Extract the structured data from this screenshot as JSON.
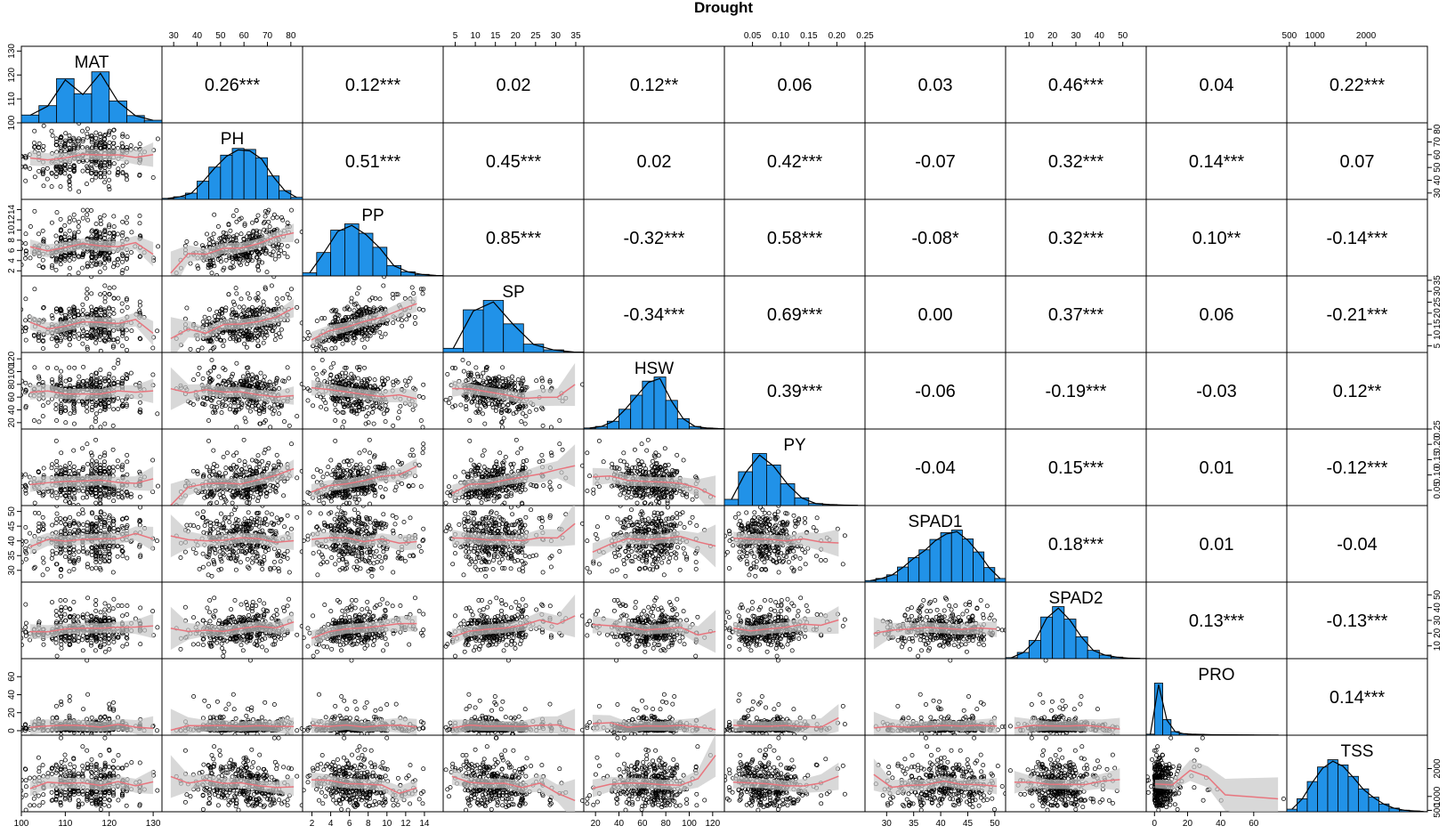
{
  "title": "Drought",
  "chart_data": {
    "type": "scatter",
    "title": "Drought",
    "variables": [
      "MAT",
      "PH",
      "PP",
      "SP",
      "HSW",
      "PY",
      "SPAD1",
      "SPAD2",
      "PRO",
      "TSS"
    ],
    "correlations": [
      [
        "MAT",
        "PH",
        "0.26***"
      ],
      [
        "MAT",
        "PP",
        "0.12***"
      ],
      [
        "MAT",
        "SP",
        "0.02"
      ],
      [
        "MAT",
        "HSW",
        "0.12**"
      ],
      [
        "MAT",
        "PY",
        "0.06"
      ],
      [
        "MAT",
        "SPAD1",
        "0.03"
      ],
      [
        "MAT",
        "SPAD2",
        "0.46***"
      ],
      [
        "MAT",
        "PRO",
        "0.04"
      ],
      [
        "MAT",
        "TSS",
        "0.22***"
      ],
      [
        "PH",
        "PP",
        "0.51***"
      ],
      [
        "PH",
        "SP",
        "0.45***"
      ],
      [
        "PH",
        "HSW",
        "0.02"
      ],
      [
        "PH",
        "PY",
        "0.42***"
      ],
      [
        "PH",
        "SPAD1",
        "-0.07"
      ],
      [
        "PH",
        "SPAD2",
        "0.32***"
      ],
      [
        "PH",
        "PRO",
        "0.14***"
      ],
      [
        "PH",
        "TSS",
        "0.07"
      ],
      [
        "PP",
        "SP",
        "0.85***"
      ],
      [
        "PP",
        "HSW",
        "-0.32***"
      ],
      [
        "PP",
        "PY",
        "0.58***"
      ],
      [
        "PP",
        "SPAD1",
        "-0.08*"
      ],
      [
        "PP",
        "SPAD2",
        "0.32***"
      ],
      [
        "PP",
        "PRO",
        "0.10**"
      ],
      [
        "PP",
        "TSS",
        "-0.14***"
      ],
      [
        "SP",
        "HSW",
        "-0.34***"
      ],
      [
        "SP",
        "PY",
        "0.69***"
      ],
      [
        "SP",
        "SPAD1",
        "0.00"
      ],
      [
        "SP",
        "SPAD2",
        "0.37***"
      ],
      [
        "SP",
        "PRO",
        "0.06"
      ],
      [
        "SP",
        "TSS",
        "-0.21***"
      ],
      [
        "HSW",
        "PY",
        "0.39***"
      ],
      [
        "HSW",
        "SPAD1",
        "-0.06"
      ],
      [
        "HSW",
        "SPAD2",
        "-0.19***"
      ],
      [
        "HSW",
        "PRO",
        "-0.03"
      ],
      [
        "HSW",
        "TSS",
        "0.12**"
      ],
      [
        "PY",
        "SPAD1",
        "-0.04"
      ],
      [
        "PY",
        "SPAD2",
        "0.15***"
      ],
      [
        "PY",
        "PRO",
        "0.01"
      ],
      [
        "PY",
        "TSS",
        "-0.12***"
      ],
      [
        "SPAD1",
        "SPAD2",
        "0.18***"
      ],
      [
        "SPAD1",
        "PRO",
        "0.01"
      ],
      [
        "SPAD1",
        "TSS",
        "-0.04"
      ],
      [
        "SPAD2",
        "PRO",
        "0.13***"
      ],
      [
        "SPAD2",
        "TSS",
        "-0.13***"
      ],
      [
        "PRO",
        "TSS",
        "0.14***"
      ]
    ],
    "axes": {
      "MAT": {
        "range": [
          100,
          132
        ],
        "ticks": [
          "100",
          "110",
          "120",
          "130"
        ]
      },
      "PH": {
        "range": [
          25,
          85
        ],
        "ticks": [
          "30",
          "40",
          "50",
          "60",
          "70",
          "80"
        ]
      },
      "PP": {
        "range": [
          1,
          16
        ],
        "ticks": [
          "2",
          "4",
          "6",
          "8",
          "10",
          "12",
          "14"
        ]
      },
      "SP": {
        "range": [
          2,
          37
        ],
        "ticks": [
          "5",
          "10",
          "15",
          "20",
          "25",
          "30",
          "35"
        ]
      },
      "HSW": {
        "range": [
          10,
          130
        ],
        "ticks": [
          "20",
          "40",
          "60",
          "80",
          "100",
          "120"
        ]
      },
      "PY": {
        "range": [
          0,
          0.25
        ],
        "ticks": [
          "0.05",
          "0.10",
          "0.15",
          "0.20",
          "0.25"
        ]
      },
      "SPAD1": {
        "range": [
          26,
          52
        ],
        "ticks": [
          "30",
          "35",
          "40",
          "45",
          "50"
        ]
      },
      "SPAD2": {
        "range": [
          0,
          60
        ],
        "ticks": [
          "10",
          "20",
          "30",
          "40",
          "50"
        ]
      },
      "PRO": {
        "range": [
          -5,
          80
        ],
        "ticks": [
          "0",
          "20",
          "40",
          "60"
        ]
      },
      "TSS": {
        "range": [
          450,
          3200
        ],
        "ticks": [
          "500",
          "1000",
          "2000"
        ]
      }
    },
    "diagonal": [
      {
        "name": "MAT",
        "bins": [
          100,
          104,
          108,
          112,
          116,
          120,
          124,
          128,
          132
        ],
        "heights": [
          0.15,
          0.33,
          0.85,
          0.56,
          0.98,
          0.42,
          0.14,
          0.05
        ]
      },
      {
        "name": "PH",
        "bins": [
          25,
          30,
          35,
          40,
          45,
          50,
          55,
          60,
          65,
          70,
          75,
          80,
          85
        ],
        "heights": [
          0.02,
          0.05,
          0.12,
          0.35,
          0.62,
          0.85,
          0.98,
          0.96,
          0.8,
          0.45,
          0.17,
          0.04
        ]
      },
      {
        "name": "PP",
        "bins": [
          1,
          2.5,
          4,
          5.5,
          7,
          8.5,
          10,
          11.5,
          13,
          14.5,
          16
        ],
        "heights": [
          0.06,
          0.45,
          0.88,
          1.0,
          0.82,
          0.55,
          0.2,
          0.08,
          0.03,
          0.01
        ]
      },
      {
        "name": "SP",
        "bins": [
          2,
          7,
          12,
          17,
          22,
          27,
          32,
          37
        ],
        "heights": [
          0.08,
          0.82,
          1.0,
          0.55,
          0.16,
          0.05,
          0.01
        ]
      },
      {
        "name": "HSW",
        "bins": [
          10,
          20,
          30,
          40,
          50,
          60,
          70,
          80,
          90,
          100,
          110,
          120,
          130
        ],
        "heights": [
          0.02,
          0.05,
          0.15,
          0.38,
          0.65,
          0.92,
          1.0,
          0.55,
          0.2,
          0.05,
          0.02,
          0.01
        ]
      },
      {
        "name": "PY",
        "bins": [
          0,
          0.025,
          0.05,
          0.075,
          0.1,
          0.125,
          0.15,
          0.175,
          0.2,
          0.225,
          0.25
        ],
        "heights": [
          0.12,
          0.65,
          1.0,
          0.78,
          0.42,
          0.15,
          0.04,
          0.02,
          0.01,
          0.005
        ]
      },
      {
        "name": "SPAD1",
        "bins": [
          26,
          28,
          30,
          32,
          34,
          36,
          38,
          40,
          42,
          44,
          46,
          48,
          50,
          52
        ],
        "heights": [
          0.03,
          0.07,
          0.14,
          0.29,
          0.47,
          0.62,
          0.82,
          0.95,
          1.0,
          0.83,
          0.58,
          0.28,
          0.07
        ]
      },
      {
        "name": "SPAD2",
        "bins": [
          0,
          5,
          10,
          15,
          20,
          25,
          30,
          35,
          40,
          45,
          50,
          55,
          60
        ],
        "heights": [
          0.02,
          0.12,
          0.35,
          0.8,
          1.0,
          0.76,
          0.42,
          0.16,
          0.07,
          0.03,
          0.01,
          0.005
        ]
      },
      {
        "name": "PRO",
        "bins": [
          -5,
          0,
          5,
          10,
          15,
          20,
          25,
          30,
          40,
          50,
          60,
          70,
          80
        ],
        "heights": [
          0.02,
          1.0,
          0.3,
          0.07,
          0.03,
          0.02,
          0.015,
          0.01,
          0.008,
          0.005,
          0.003,
          0.002
        ]
      },
      {
        "name": "TSS",
        "bins": [
          450,
          650,
          850,
          1050,
          1250,
          1450,
          1650,
          1850,
          2050,
          2250,
          2450,
          2650,
          2850,
          3050,
          3200
        ],
        "heights": [
          0.05,
          0.25,
          0.58,
          0.86,
          1.0,
          0.9,
          0.68,
          0.44,
          0.28,
          0.15,
          0.07,
          0.03,
          0.015,
          0.005
        ]
      }
    ],
    "colors": {
      "histogram": "#2192e8",
      "points": "#000000",
      "smooth": "#e8757e",
      "band": "#c8c8c8"
    },
    "grid": false,
    "legend": "none"
  }
}
